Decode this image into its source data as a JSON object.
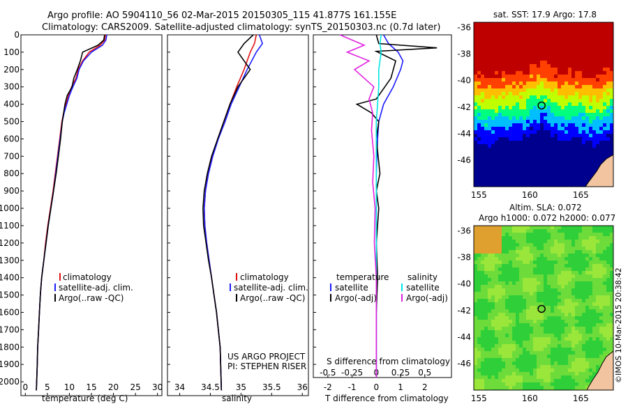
{
  "header": {
    "line1": "Argo profile: AO 5904110_56 02-Mar-2015 20150305_115 41.877S 161.155E",
    "line2": "Climatology: CARS2009. Satellite-adjusted climatology: synTS_20150303.nc (0.7d later)"
  },
  "credit": {
    "project": "US ARGO PROJECT",
    "pi": "PI: STEPHEN RISER",
    "stamp": "©IMOS 10-Mar-2015 20:38:42"
  },
  "colors": {
    "climatology": "#e01010",
    "satellite": "#1a1aff",
    "argo": "#000000",
    "salinity_satellite": "#00e5e5",
    "salinity_argo": "#e020e0"
  },
  "chart_data": [
    {
      "id": "temperature",
      "type": "line",
      "xlabel": "temperature (deg C)",
      "ylabel": "",
      "xlim": [
        -1,
        31
      ],
      "ylim": [
        2080,
        0
      ],
      "xticks": [
        0,
        5,
        10,
        15,
        20,
        25,
        30
      ],
      "xtick_labels": [
        "0",
        "5",
        "10",
        "15",
        "20",
        "25",
        "30"
      ],
      "yticks": [
        0,
        100,
        200,
        300,
        400,
        500,
        600,
        700,
        800,
        900,
        1000,
        1100,
        1200,
        1300,
        1400,
        1500,
        1600,
        1700,
        1800,
        1900,
        2000
      ],
      "legend": [
        "climatology",
        "satellite-adj. clim.",
        "Argo(..raw -QC)"
      ],
      "series": [
        {
          "name": "climatology",
          "color_key": "climatology",
          "x": [
            18.2,
            18.0,
            17.0,
            14.5,
            13.0,
            12.0,
            11.5,
            10.5,
            9.8,
            9.2,
            8.7,
            8.3,
            7.8,
            7.3,
            6.8,
            6.3,
            5.7,
            5.1,
            4.6,
            4.2,
            3.7,
            3.4,
            3.2,
            3.0,
            2.8,
            2.7,
            2.5
          ],
          "y": [
            0,
            30,
            60,
            100,
            150,
            200,
            250,
            300,
            350,
            400,
            450,
            500,
            600,
            700,
            800,
            900,
            1000,
            1100,
            1200,
            1300,
            1400,
            1500,
            1600,
            1700,
            1800,
            1900,
            2050
          ]
        },
        {
          "name": "satellite-adj. clim.",
          "color_key": "satellite",
          "x": [
            18.5,
            18.3,
            17.5,
            15.0,
            13.2,
            12.2,
            11.7,
            10.8,
            10.0,
            9.4,
            8.8,
            8.4,
            7.9,
            7.4,
            6.9,
            6.4,
            5.8,
            5.2,
            4.7,
            4.2,
            3.7,
            3.4,
            3.2,
            3.0,
            2.8,
            2.7,
            2.5
          ],
          "y": [
            0,
            30,
            60,
            100,
            150,
            200,
            250,
            300,
            350,
            400,
            450,
            500,
            600,
            700,
            800,
            900,
            1000,
            1100,
            1200,
            1300,
            1400,
            1500,
            1600,
            1700,
            1800,
            1900,
            2050
          ]
        },
        {
          "name": "Argo(..raw -QC)",
          "color_key": "argo",
          "x": [
            18.0,
            17.8,
            16.5,
            13.0,
            12.5,
            11.8,
            11.0,
            10.6,
            9.5,
            9.0,
            8.7,
            8.4,
            8.0,
            7.5,
            7.0,
            6.4,
            5.8,
            5.2,
            4.7,
            4.2,
            3.7,
            3.4,
            3.2,
            3.0,
            2.8,
            2.7,
            2.5
          ],
          "y": [
            0,
            30,
            60,
            100,
            150,
            200,
            250,
            300,
            350,
            400,
            450,
            500,
            600,
            700,
            800,
            900,
            1000,
            1100,
            1200,
            1300,
            1400,
            1500,
            1600,
            1700,
            1800,
            1900,
            2050
          ]
        }
      ]
    },
    {
      "id": "salinity",
      "type": "line",
      "xlabel": "salinity",
      "xlim": [
        33.8,
        36.1
      ],
      "ylim": [
        2080,
        0
      ],
      "xticks": [
        34,
        34.5,
        35,
        35.5,
        36
      ],
      "xtick_labels": [
        "34",
        "34.5",
        "35",
        "35.5",
        "36"
      ],
      "legend": [
        "climatology",
        "satellite-adj. clim.",
        "Argo(..raw -QC)"
      ],
      "series": [
        {
          "name": "climatology",
          "color_key": "climatology",
          "x": [
            35.25,
            35.22,
            35.15,
            35.05,
            34.93,
            34.82,
            34.72,
            34.62,
            34.53,
            34.46,
            34.42,
            34.4,
            34.41,
            34.44,
            34.48,
            34.52,
            34.56,
            34.6,
            34.63,
            34.66,
            34.68
          ],
          "y": [
            0,
            50,
            100,
            200,
            300,
            400,
            500,
            600,
            700,
            800,
            900,
            1000,
            1100,
            1200,
            1300,
            1400,
            1500,
            1600,
            1700,
            1800,
            2050
          ]
        },
        {
          "name": "satellite-adj. clim.",
          "color_key": "satellite",
          "x": [
            35.3,
            35.35,
            35.25,
            35.1,
            34.97,
            34.84,
            34.74,
            34.63,
            34.54,
            34.47,
            34.42,
            34.4,
            34.41,
            34.44,
            34.48,
            34.52,
            34.56,
            34.6,
            34.63,
            34.66,
            34.68
          ],
          "y": [
            0,
            50,
            100,
            200,
            300,
            400,
            500,
            600,
            700,
            800,
            900,
            1000,
            1100,
            1200,
            1300,
            1400,
            1500,
            1600,
            1700,
            1800,
            2050
          ]
        },
        {
          "name": "Argo(..raw -QC)",
          "color_key": "argo",
          "x": [
            35.2,
            35.05,
            34.95,
            35.15,
            34.95,
            34.82,
            34.72,
            34.62,
            34.52,
            34.45,
            34.4,
            34.38,
            34.39,
            34.43,
            34.47,
            34.52,
            34.56,
            34.6,
            34.63,
            34.66,
            34.68
          ],
          "y": [
            0,
            50,
            100,
            200,
            300,
            400,
            500,
            600,
            700,
            800,
            900,
            1000,
            1100,
            1200,
            1300,
            1400,
            1500,
            1600,
            1700,
            1800,
            2050
          ]
        }
      ]
    },
    {
      "id": "difference",
      "type": "line",
      "xlabel": "T difference from climatology",
      "xlabel_top": "S difference from climatology",
      "xlim": [
        -2.6,
        3.1
      ],
      "ylim": [
        2080,
        0
      ],
      "xticks": [
        -2,
        -1,
        0,
        1,
        2
      ],
      "xtick_labels": [
        "-2",
        "-1",
        "0",
        "1",
        "2"
      ],
      "xticks_s": [
        -2,
        -1,
        0,
        1,
        2
      ],
      "xtick_labels_s": [
        "-0.5",
        "-0.25",
        "0",
        "0.25",
        "0.5"
      ],
      "legend_temperature_title": "temperature",
      "legend_salinity_title": "salinity",
      "legend": [
        "satellite",
        "Argo(-adj)",
        "satellite",
        "Argo(-adj)"
      ],
      "series": [
        {
          "name": "satellite",
          "group": "temperature",
          "color_key": "satellite",
          "x": [
            0.3,
            0.5,
            0.9,
            1.1,
            1.0,
            0.7,
            0.3,
            0.1,
            0.05,
            0.0,
            0.0,
            0.0,
            0.0,
            0.0,
            0.0,
            0.0
          ],
          "y": [
            0,
            50,
            100,
            150,
            200,
            300,
            400,
            500,
            600,
            800,
            1000,
            1200,
            1400,
            1600,
            1800,
            2050
          ]
        },
        {
          "name": "Argo(-adj)",
          "group": "temperature",
          "color_key": "argo",
          "x": [
            0.0,
            0.1,
            2.5,
            0.0,
            0.8,
            0.6,
            0.0,
            -0.8,
            -0.2,
            0.1,
            0.0,
            0.15,
            0.0,
            0.1,
            0.0,
            0.05,
            0.0,
            0.0,
            0.0
          ],
          "y": [
            0,
            50,
            75,
            95,
            150,
            250,
            370,
            400,
            450,
            500,
            600,
            800,
            900,
            1000,
            1200,
            1400,
            1600,
            1800,
            2050
          ]
        },
        {
          "name": "satellite",
          "group": "salinity",
          "color_key": "salinity_satellite",
          "x": [
            0.2,
            0.15,
            0.2,
            0.1,
            0.1,
            0.05,
            0.0,
            0.0,
            0.0,
            0.0,
            0.0,
            0.0,
            0.0,
            0.0
          ],
          "y": [
            0,
            50,
            100,
            200,
            300,
            400,
            500,
            600,
            800,
            1000,
            1200,
            1400,
            1600,
            2050
          ]
        },
        {
          "name": "Argo(-adj)",
          "group": "salinity",
          "color_key": "salinity_argo",
          "x": [
            -1.5,
            -1.0,
            -0.5,
            -1.2,
            -0.3,
            -0.9,
            -0.1,
            -0.3,
            -0.15,
            -0.2,
            -0.1,
            -0.15,
            -0.05,
            -0.08,
            0.0,
            0.0,
            0.0
          ],
          "y": [
            0,
            30,
            60,
            100,
            150,
            200,
            300,
            370,
            450,
            550,
            700,
            850,
            1000,
            1200,
            1400,
            1600,
            2050
          ]
        }
      ]
    },
    {
      "id": "sst_map",
      "type": "heatmap",
      "title": "sat. SST: 17.9 Argo: 17.8",
      "xlim": [
        154.5,
        168.2
      ],
      "ylim": [
        -48,
        -35.6
      ],
      "xticks": [
        155,
        160,
        165
      ],
      "yticks": [
        -36,
        -38,
        -40,
        -42,
        -44,
        -46
      ],
      "marker": {
        "lon": 161.155,
        "lat": -41.877
      },
      "colormap": [
        "#00008f",
        "#0000ff",
        "#00bfff",
        "#00ff7f",
        "#bfff00",
        "#ffbf00",
        "#ff4000",
        "#bf0000"
      ]
    },
    {
      "id": "sla_map",
      "type": "heatmap",
      "title": "Altim. SLA: 0.072",
      "subtitle": "Argo h1000: 0.072 h2000: 0.077",
      "xlim": [
        154.5,
        168.2
      ],
      "ylim": [
        -48,
        -35.6
      ],
      "xticks": [
        155,
        160,
        165
      ],
      "yticks": [
        -36,
        -38,
        -40,
        -42,
        -44,
        -46
      ],
      "marker": {
        "lon": 161.155,
        "lat": -41.877
      }
    }
  ]
}
